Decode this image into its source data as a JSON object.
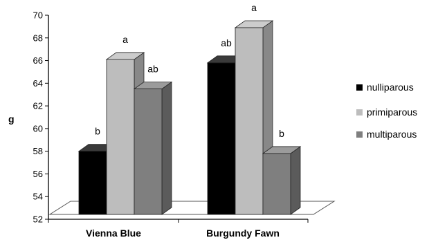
{
  "chart_data": {
    "type": "bar",
    "style": "3d-clustered-column",
    "ylabel": "g",
    "ylim": [
      52,
      70
    ],
    "yticks": [
      52,
      54,
      56,
      58,
      60,
      62,
      64,
      66,
      68,
      70
    ],
    "grid": false,
    "legend_position": "right",
    "categories": [
      "Vienna Blue",
      "Burgundy Fawn"
    ],
    "series": [
      {
        "name": "nulliparous",
        "color": "#000000",
        "values": [
          58.0,
          65.8
        ],
        "labels": [
          "b",
          "ab"
        ]
      },
      {
        "name": "primiparous",
        "color": "#bdbdbd",
        "values": [
          66.1,
          68.9
        ],
        "labels": [
          "a",
          "a"
        ]
      },
      {
        "name": "multiparous",
        "color": "#7f7f7f",
        "values": [
          63.5,
          57.8
        ],
        "labels": [
          "ab",
          "b"
        ]
      }
    ]
  }
}
